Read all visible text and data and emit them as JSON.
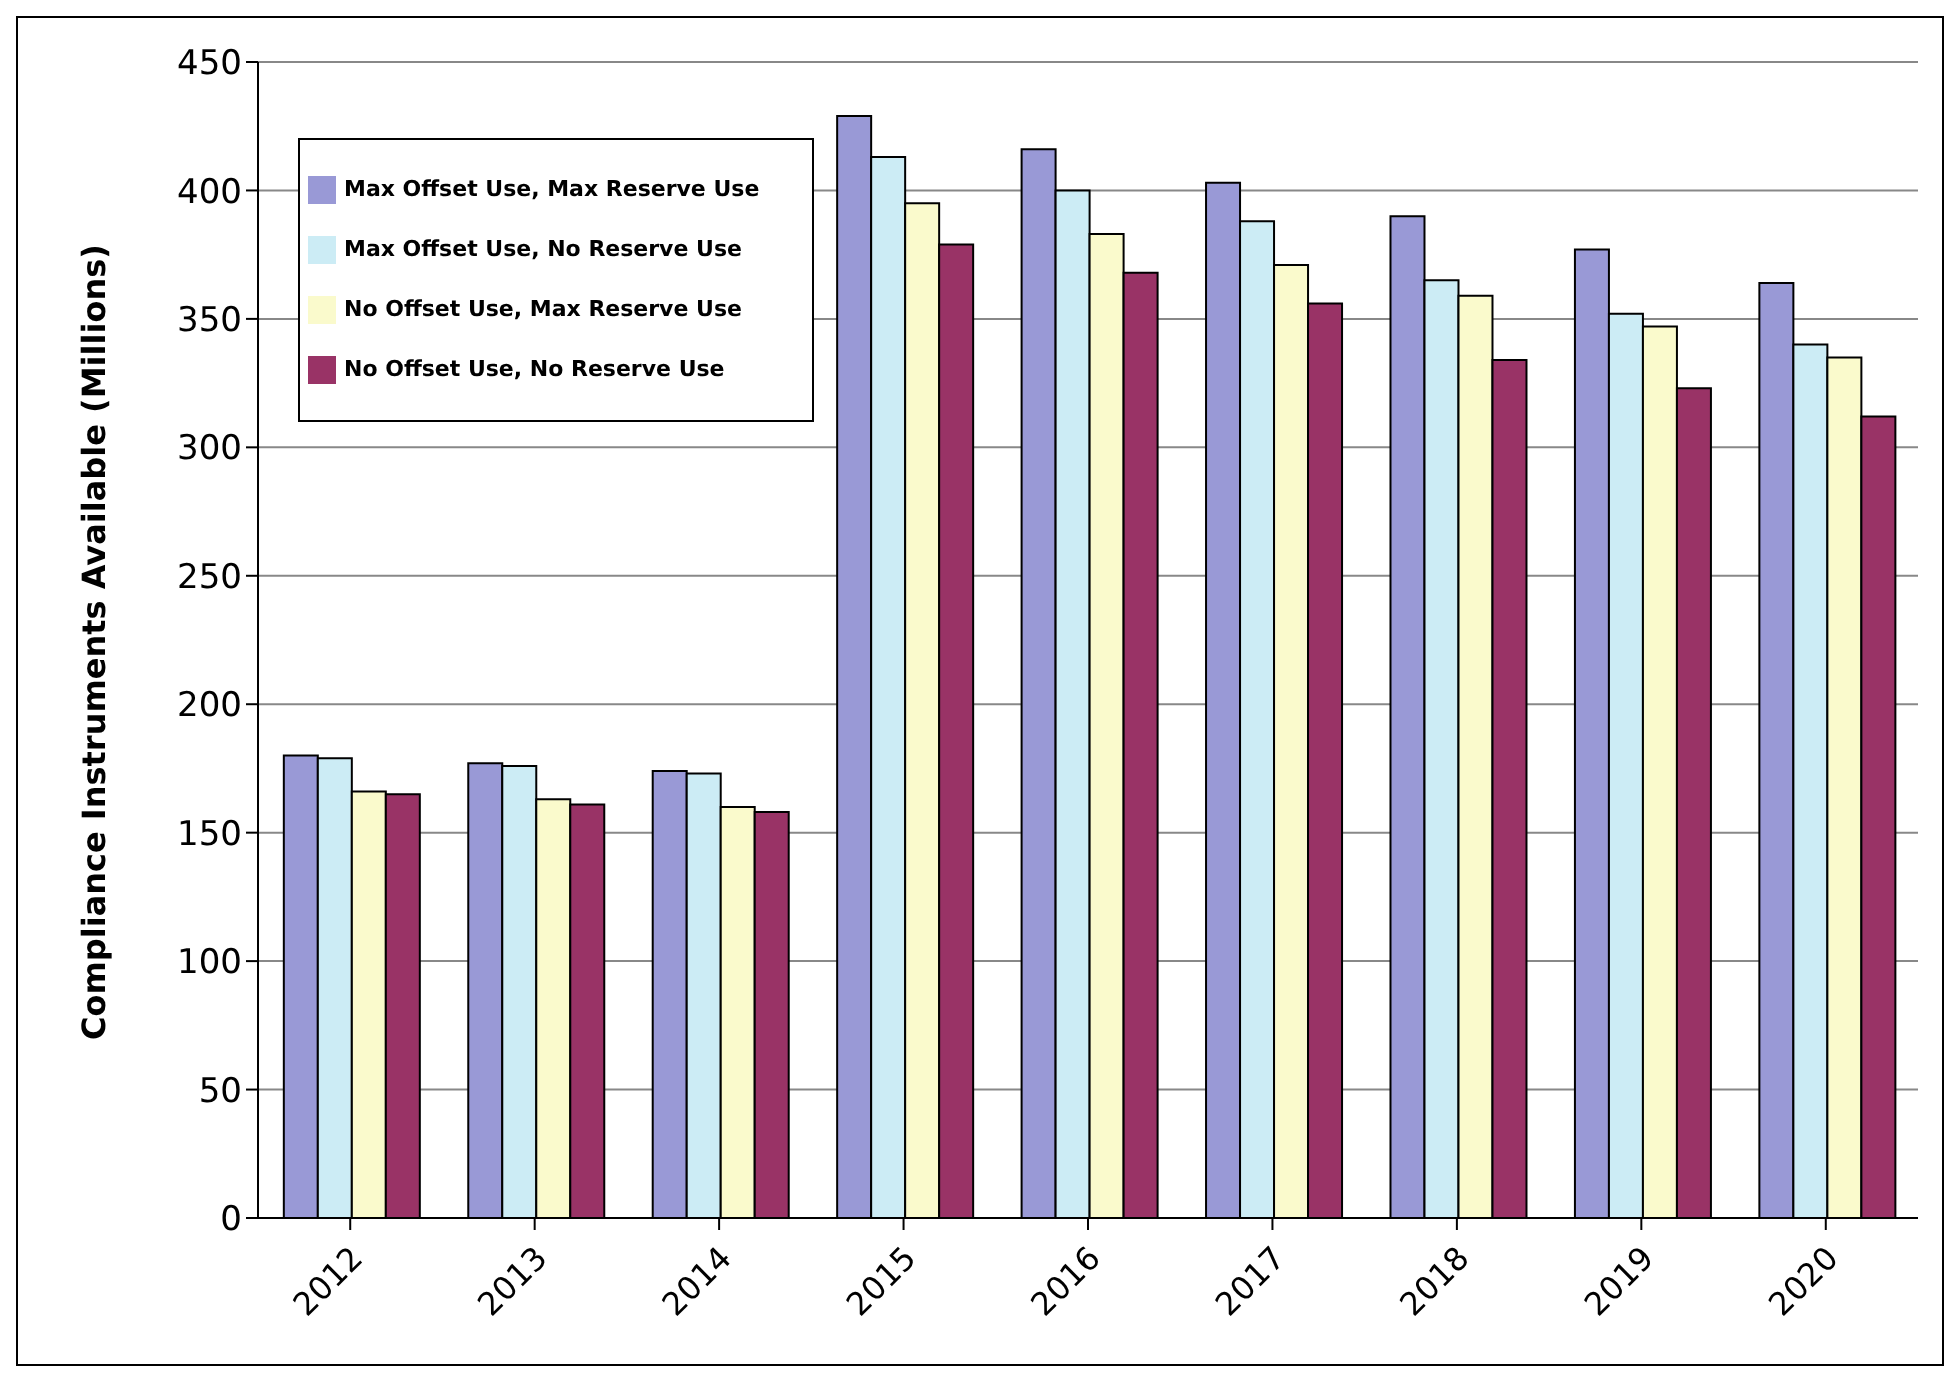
{
  "chart_data": {
    "type": "bar",
    "ylabel": "Compliance Instruments Available (Millions)",
    "categories": [
      "2012",
      "2013",
      "2014",
      "2015",
      "2016",
      "2017",
      "2018",
      "2019",
      "2020"
    ],
    "series": [
      {
        "name": "Max Offset Use, Max Reserve Use",
        "color": "#9999d6",
        "values": [
          180,
          177,
          174,
          429,
          416,
          403,
          390,
          377,
          364
        ]
      },
      {
        "name": "Max Offset Use, No Reserve Use",
        "color": "#ccecf5",
        "values": [
          179,
          176,
          173,
          413,
          400,
          388,
          365,
          352,
          340
        ]
      },
      {
        "name": "No Offset Use, Max Reserve Use",
        "color": "#fafacc",
        "values": [
          166,
          163,
          160,
          395,
          383,
          371,
          359,
          347,
          335
        ]
      },
      {
        "name": "No Offset Use, No Reserve Use",
        "color": "#993366",
        "values": [
          165,
          161,
          158,
          379,
          368,
          356,
          334,
          323,
          312
        ]
      }
    ],
    "ylim": [
      0,
      450
    ],
    "yticks": [
      0,
      50,
      100,
      150,
      200,
      250,
      300,
      350,
      400,
      450
    ],
    "grid": "y",
    "legend": "top left"
  }
}
